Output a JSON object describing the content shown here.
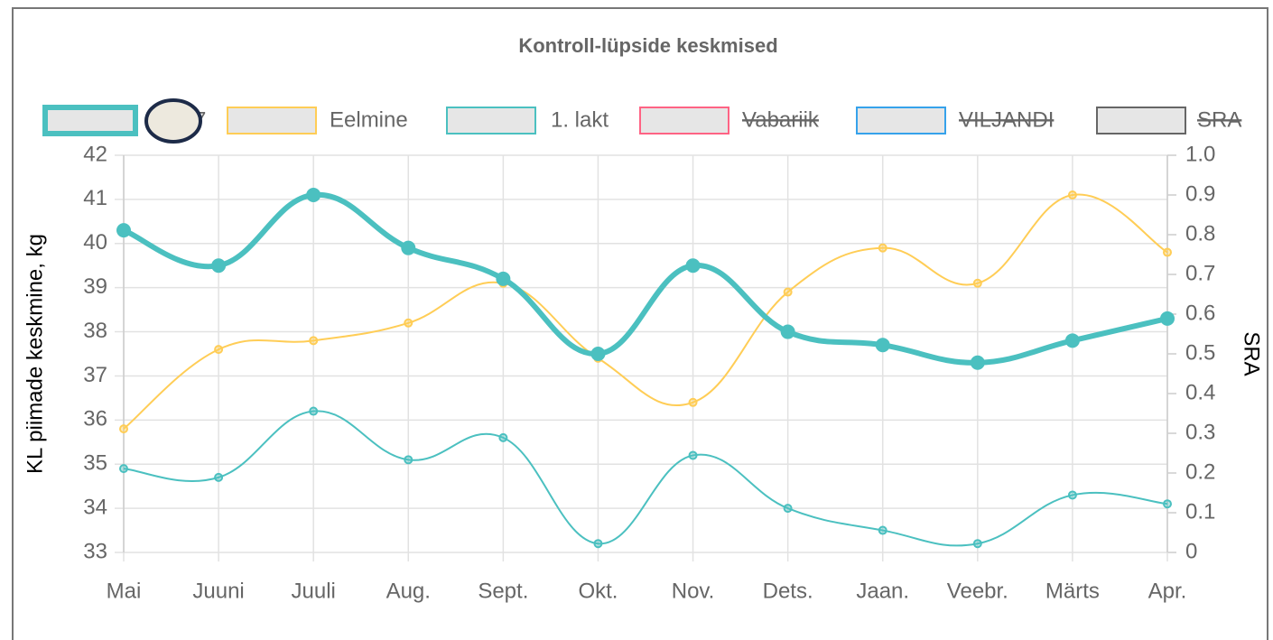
{
  "chart_data": {
    "type": "line",
    "title": "Kontroll-lüpside keskmised",
    "y_label": "KL piimade keskmine, kg",
    "y2_label": "SRA",
    "categories": [
      "Mai",
      "Juuni",
      "Juuli",
      "Aug.",
      "Sept.",
      "Okt.",
      "Nov.",
      "Dets.",
      "Jaan.",
      "Veebr.",
      "Märts",
      "Apr."
    ],
    "series": [
      {
        "name": "7",
        "color": "#4bc0c0",
        "line_width": 6,
        "values": [
          40.3,
          39.5,
          41.1,
          39.9,
          39.2,
          37.5,
          39.5,
          38.0,
          37.7,
          37.3,
          37.8,
          38.3
        ]
      },
      {
        "name": "Eelmine",
        "color": "#ffcd56",
        "line_width": 2,
        "values": [
          35.8,
          37.6,
          37.8,
          38.2,
          39.1,
          37.4,
          36.4,
          38.9,
          39.9,
          39.1,
          41.1,
          39.8
        ]
      },
      {
        "name": "1. lakt",
        "color": "#4bc0c0",
        "line_width": 2,
        "values": [
          34.9,
          34.7,
          36.2,
          35.1,
          35.6,
          33.2,
          35.2,
          34.0,
          33.5,
          33.2,
          34.3,
          34.1
        ]
      },
      {
        "name": "Vabariik",
        "color": "#ff6384",
        "hidden": true
      },
      {
        "name": "VILJANDI",
        "color": "#36a2eb",
        "hidden": true
      },
      {
        "name": "SRA",
        "color": "#666666",
        "hidden": true,
        "axis": "y2"
      }
    ],
    "ylim": [
      33,
      42
    ],
    "yticks": [
      33,
      34,
      35,
      36,
      37,
      38,
      39,
      40,
      41,
      42
    ],
    "y2lim": [
      0,
      1
    ],
    "y2ticks": [
      0,
      0.1,
      0.2,
      0.3,
      0.4,
      0.5,
      0.6,
      0.7,
      0.8,
      0.9,
      {
        "value": 1,
        "label": "1.0"
      }
    ],
    "grid": true,
    "legend": "top"
  }
}
